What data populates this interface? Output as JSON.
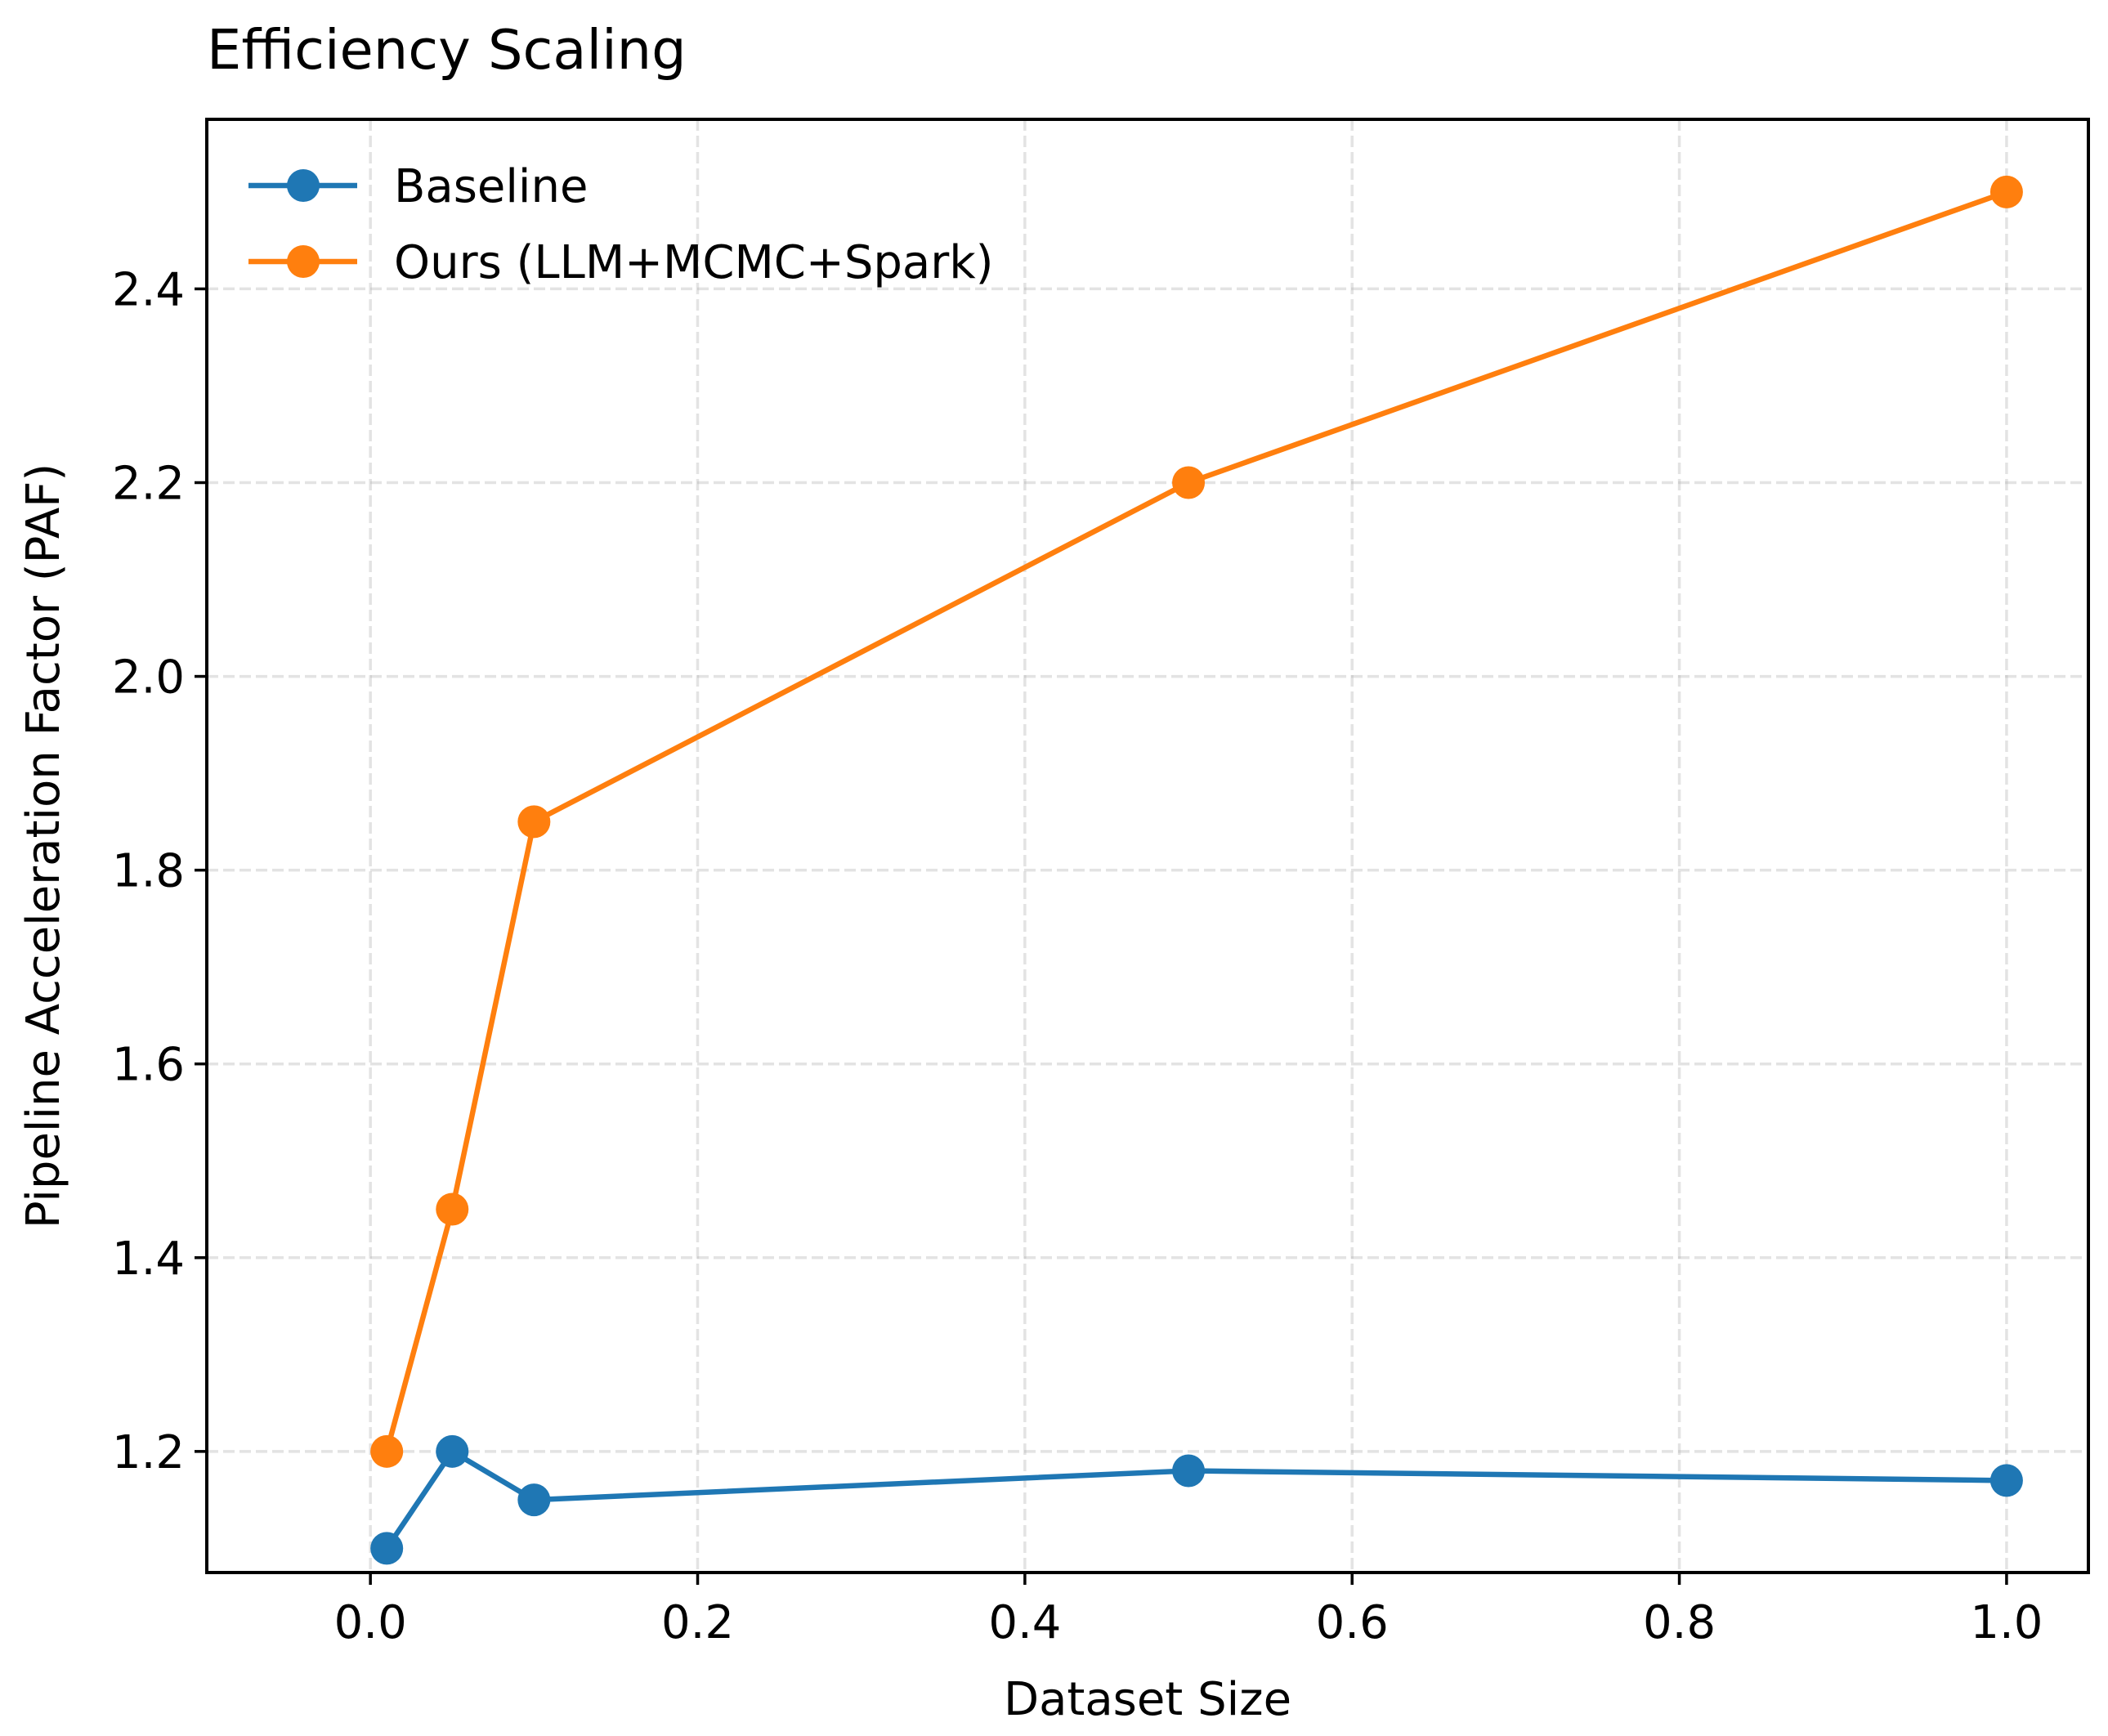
{
  "chart_data": {
    "type": "line",
    "title": "Efficiency Scaling",
    "xlabel": "Dataset Size",
    "ylabel": "Pipeline Acceleration Factor (PAF)",
    "xlim": [
      -0.1,
      1.05
    ],
    "ylim": [
      1.075,
      2.575
    ],
    "x_ticks": [
      0.0,
      0.2,
      0.4,
      0.6,
      0.8,
      1.0
    ],
    "x_tick_labels": [
      "0.0",
      "0.2",
      "0.4",
      "0.6",
      "0.8",
      "1.0"
    ],
    "y_ticks": [
      1.2,
      1.4,
      1.6,
      1.8,
      2.0,
      2.2,
      2.4
    ],
    "y_tick_labels": [
      "1.2",
      "1.4",
      "1.6",
      "1.8",
      "2.0",
      "2.2",
      "2.4"
    ],
    "grid": true,
    "legend_position": "top-left",
    "x": [
      0.01,
      0.05,
      0.1,
      0.5,
      1.0
    ],
    "series": [
      {
        "name": "Baseline",
        "color": "#1f77b4",
        "values": [
          1.1,
          1.2,
          1.15,
          1.18,
          1.17
        ]
      },
      {
        "name": "Ours (LLM+MCMC+Spark)",
        "color": "#ff7f0e",
        "values": [
          1.2,
          1.45,
          1.85,
          2.2,
          2.5
        ]
      }
    ]
  }
}
